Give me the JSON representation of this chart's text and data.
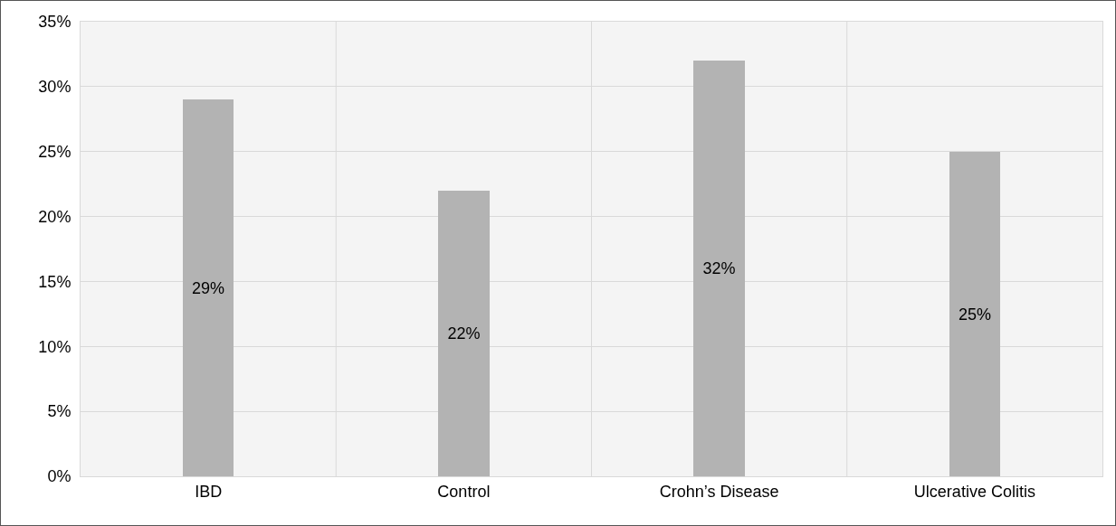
{
  "chart_data": {
    "type": "bar",
    "categories": [
      "IBD",
      "Control",
      "Crohn’s Disease",
      "Ulcerative Colitis"
    ],
    "values": [
      29,
      22,
      32,
      25
    ],
    "color": "#b3b3b3",
    "value_labels": [
      "29%",
      "22%",
      "32%",
      "25%"
    ],
    "ylim": [
      0,
      35
    ],
    "yticks": [
      {
        "value": 0,
        "label": "0%"
      },
      {
        "value": 5,
        "label": "5%"
      },
      {
        "value": 10,
        "label": "10%"
      },
      {
        "value": 15,
        "label": "15%"
      },
      {
        "value": 20,
        "label": "20%"
      },
      {
        "value": 25,
        "label": "25%"
      },
      {
        "value": 30,
        "label": "30%"
      },
      {
        "value": 35,
        "label": "35%"
      }
    ],
    "grid": true,
    "legend": false
  }
}
